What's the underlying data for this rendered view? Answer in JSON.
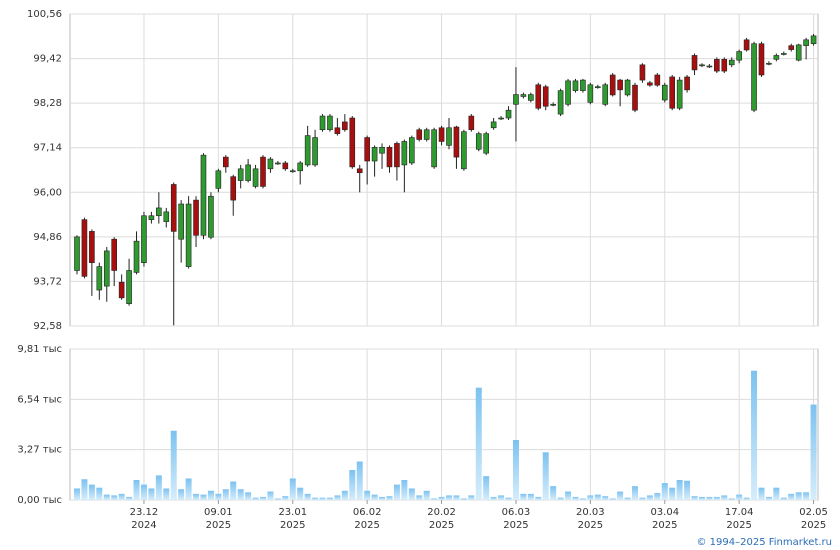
{
  "chart_data": {
    "type": "candlestick",
    "categories": [
      null,
      null,
      null,
      null,
      null,
      null,
      null,
      null,
      null,
      {
        "day": "23.12",
        "year": "2024"
      },
      null,
      null,
      null,
      null,
      null,
      null,
      null,
      null,
      null,
      {
        "day": "09.01",
        "year": "2025"
      },
      null,
      null,
      null,
      null,
      null,
      null,
      null,
      null,
      null,
      {
        "day": "23.01",
        "year": "2025"
      },
      null,
      null,
      null,
      null,
      null,
      null,
      null,
      null,
      null,
      {
        "day": "06.02",
        "year": "2025"
      },
      null,
      null,
      null,
      null,
      null,
      null,
      null,
      null,
      null,
      {
        "day": "20.02",
        "year": "2025"
      },
      null,
      null,
      null,
      null,
      null,
      null,
      null,
      null,
      null,
      {
        "day": "06.03",
        "year": "2025"
      },
      null,
      null,
      null,
      null,
      null,
      null,
      null,
      null,
      null,
      {
        "day": "20.03",
        "year": "2025"
      },
      null,
      null,
      null,
      null,
      null,
      null,
      null,
      null,
      null,
      {
        "day": "03.04",
        "year": "2025"
      },
      null,
      null,
      null,
      null,
      null,
      null,
      null,
      null,
      null,
      {
        "day": "17.04",
        "year": "2025"
      },
      null,
      null,
      null,
      null,
      null,
      null,
      null,
      null,
      null,
      {
        "day": "02.05",
        "year": "2025"
      }
    ],
    "open": [
      94.0,
      95.3,
      95.0,
      93.5,
      93.6,
      94.8,
      93.7,
      93.15,
      93.95,
      94.2,
      95.3,
      95.4,
      95.25,
      96.2,
      94.8,
      94.1,
      95.8,
      94.9,
      94.85,
      96.1,
      96.9,
      96.4,
      96.3,
      96.3,
      96.15,
      96.9,
      96.6,
      96.75,
      96.75,
      96.55,
      96.55,
      96.7,
      96.7,
      97.6,
      97.6,
      97.65,
      97.8,
      97.9,
      96.6,
      97.4,
      96.8,
      97.0,
      97.15,
      97.25,
      96.7,
      96.75,
      97.6,
      97.35,
      96.65,
      97.65,
      97.2,
      97.67,
      96.6,
      97.95,
      97.1,
      97.0,
      97.65,
      97.9,
      97.9,
      98.25,
      98.45,
      98.35,
      98.75,
      98.7,
      98.25,
      98.0,
      98.25,
      98.6,
      98.6,
      98.3,
      98.7,
      98.25,
      99.0,
      98.87,
      98.49,
      98.74,
      99.26,
      98.8,
      99.0,
      98.36,
      98.95,
      98.15,
      98.95,
      99.5,
      99.26,
      99.23,
      99.4,
      99.4,
      99.26,
      99.38,
      99.9,
      98.1,
      99.8,
      99.3,
      99.4,
      99.55,
      99.75,
      99.38,
      99.75,
      99.8
    ],
    "high": [
      94.9,
      95.35,
      95.05,
      94.2,
      94.6,
      94.85,
      93.9,
      94.3,
      95.0,
      95.5,
      95.5,
      96.0,
      95.6,
      96.25,
      95.8,
      95.9,
      95.9,
      97.0,
      96.0,
      96.6,
      96.95,
      96.45,
      96.7,
      96.85,
      96.7,
      96.95,
      96.9,
      96.8,
      96.8,
      96.6,
      96.8,
      97.7,
      97.6,
      98.0,
      98.0,
      97.9,
      98.0,
      97.95,
      96.7,
      97.45,
      97.2,
      97.25,
      97.2,
      97.3,
      97.35,
      97.45,
      97.65,
      97.65,
      97.65,
      97.7,
      97.9,
      97.7,
      97.6,
      98.0,
      97.55,
      97.55,
      97.9,
      97.95,
      98.2,
      99.2,
      98.55,
      98.55,
      98.8,
      98.75,
      98.3,
      98.65,
      98.9,
      98.9,
      98.9,
      98.8,
      98.75,
      98.8,
      99.05,
      98.9,
      98.9,
      98.8,
      99.3,
      98.85,
      99.05,
      98.8,
      99.0,
      98.95,
      99.0,
      99.55,
      99.3,
      99.28,
      99.45,
      99.45,
      99.45,
      99.65,
      99.95,
      99.85,
      99.85,
      99.35,
      99.55,
      99.6,
      99.8,
      99.8,
      99.95,
      100.05
    ],
    "low": [
      93.9,
      93.8,
      93.35,
      93.25,
      93.2,
      93.6,
      93.25,
      93.1,
      93.9,
      94.1,
      95.2,
      95.2,
      95.1,
      92.6,
      94.2,
      94.05,
      94.6,
      94.8,
      94.8,
      96.0,
      96.5,
      95.4,
      96.1,
      96.25,
      96.1,
      96.1,
      96.5,
      96.7,
      96.55,
      96.5,
      96.2,
      96.65,
      96.65,
      97.55,
      97.55,
      97.45,
      97.55,
      96.6,
      96.0,
      96.2,
      96.4,
      96.6,
      96.5,
      96.3,
      96.0,
      96.7,
      97.3,
      97.3,
      96.6,
      97.2,
      97.1,
      96.6,
      96.55,
      97.55,
      97.05,
      96.95,
      97.6,
      97.85,
      97.85,
      97.3,
      98.4,
      98.3,
      98.1,
      98.1,
      98.2,
      97.95,
      98.2,
      98.55,
      98.55,
      98.25,
      98.65,
      98.2,
      98.45,
      98.2,
      98.45,
      98.05,
      98.8,
      98.7,
      98.7,
      98.3,
      98.1,
      98.1,
      98.55,
      99.0,
      99.2,
      99.18,
      99.05,
      99.05,
      99.2,
      99.3,
      99.6,
      98.05,
      98.95,
      99.25,
      99.35,
      99.5,
      99.6,
      99.35,
      99.4,
      99.75
    ],
    "close": [
      94.86,
      93.85,
      94.2,
      94.1,
      94.5,
      94.0,
      93.3,
      94.0,
      94.75,
      95.4,
      95.4,
      95.6,
      95.5,
      95.0,
      95.7,
      95.7,
      94.9,
      96.95,
      95.9,
      96.55,
      96.65,
      95.8,
      96.6,
      96.7,
      96.6,
      96.15,
      96.85,
      96.75,
      96.6,
      96.55,
      96.75,
      97.45,
      97.4,
      97.95,
      97.95,
      97.5,
      97.6,
      96.65,
      96.5,
      96.8,
      97.15,
      97.15,
      96.65,
      96.65,
      97.3,
      97.4,
      97.35,
      97.6,
      97.6,
      97.3,
      97.65,
      96.9,
      97.55,
      97.6,
      97.5,
      97.5,
      97.8,
      97.9,
      98.1,
      98.5,
      98.5,
      98.5,
      98.15,
      98.2,
      98.25,
      98.6,
      98.85,
      98.85,
      98.87,
      98.75,
      98.7,
      98.75,
      98.49,
      98.62,
      98.87,
      98.1,
      98.87,
      98.74,
      98.74,
      98.74,
      98.15,
      98.87,
      98.62,
      99.13,
      99.26,
      99.23,
      99.1,
      99.1,
      99.38,
      99.6,
      99.64,
      99.8,
      99.0,
      99.3,
      99.5,
      99.55,
      99.65,
      99.77,
      99.9,
      100.0
    ],
    "up_color": "#2f9a2f",
    "down_color": "#a81010",
    "ylim": [
      92.58,
      100.56
    ],
    "yticks": [
      {
        "value": 92.58,
        "label": "92,58"
      },
      {
        "value": 93.72,
        "label": "93,72"
      },
      {
        "value": 94.86,
        "label": "94,86"
      },
      {
        "value": 96.0,
        "label": "96,00"
      },
      {
        "value": 97.14,
        "label": "97,14"
      },
      {
        "value": 98.28,
        "label": "98,28"
      },
      {
        "value": 99.42,
        "label": "99,42"
      },
      {
        "value": 100.56,
        "label": "100,56"
      }
    ],
    "volume": {
      "values": [
        0.75,
        1.35,
        1.0,
        0.8,
        0.35,
        0.3,
        0.4,
        0.2,
        1.3,
        1.0,
        0.75,
        1.6,
        0.75,
        4.5,
        0.7,
        1.4,
        0.4,
        0.35,
        0.6,
        0.4,
        0.7,
        1.2,
        0.7,
        0.5,
        0.15,
        0.2,
        0.55,
        0.1,
        0.25,
        1.4,
        0.8,
        0.4,
        0.15,
        0.15,
        0.15,
        0.3,
        0.6,
        1.95,
        2.5,
        0.6,
        0.35,
        0.2,
        0.25,
        1.0,
        1.3,
        0.75,
        0.3,
        0.6,
        0.1,
        0.2,
        0.3,
        0.3,
        0.1,
        0.3,
        7.3,
        1.55,
        0.2,
        0.3,
        0.15,
        3.9,
        0.4,
        0.4,
        0.2,
        3.1,
        0.9,
        0.15,
        0.55,
        0.2,
        0.1,
        0.3,
        0.35,
        0.25,
        0.1,
        0.55,
        0.15,
        0.9,
        0.15,
        0.3,
        0.45,
        1.1,
        0.8,
        1.3,
        1.25,
        0.25,
        0.2,
        0.2,
        0.2,
        0.3,
        0.1,
        0.35,
        0.15,
        8.4,
        0.8,
        0.2,
        0.8,
        0.15,
        0.4,
        0.5,
        0.5,
        6.2
      ],
      "color": "#8ccbf2",
      "ylim": [
        0,
        9.81
      ],
      "yticks": [
        {
          "value": 0,
          "label": "0,00 тыс"
        },
        {
          "value": 3.27,
          "label": "3,27 тыс"
        },
        {
          "value": 6.54,
          "label": "6,54 тыс"
        },
        {
          "value": 9.81,
          "label": "9,81 тыс"
        }
      ]
    },
    "grid": true,
    "footer": "© 1994–2025 Finmarket.ru"
  }
}
